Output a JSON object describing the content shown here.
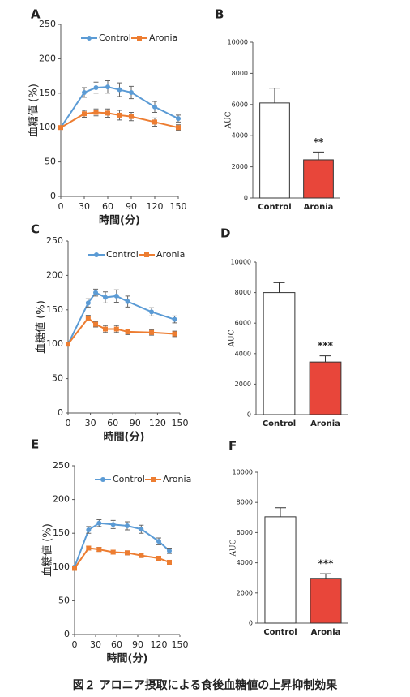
{
  "chart_data": [
    {
      "type": "line",
      "label": "A",
      "xlabel": "時間(分)",
      "ylabel": "血糖値 (%)",
      "x": [
        0,
        30,
        45,
        60,
        75,
        90,
        120,
        150
      ],
      "xlim": [
        0,
        150
      ],
      "xticks": [
        0,
        30,
        60,
        90,
        120,
        150
      ],
      "ylim": [
        0,
        250
      ],
      "yticks": [
        0,
        50,
        100,
        150,
        200,
        250
      ],
      "series": [
        {
          "name": "Control",
          "color": "#5b9bd5",
          "marker": "circle",
          "values": [
            100,
            151,
            158,
            159,
            155,
            151,
            130,
            113
          ],
          "errors": [
            0,
            7,
            8,
            9,
            10,
            9,
            8,
            5
          ]
        },
        {
          "name": "Aronia",
          "color": "#ed7d31",
          "marker": "square",
          "values": [
            100,
            120,
            122,
            121,
            118,
            116,
            108,
            100
          ],
          "errors": [
            0,
            5,
            5,
            6,
            7,
            6,
            6,
            4
          ]
        }
      ]
    },
    {
      "type": "bar",
      "label": "B",
      "ylabel": "AUC",
      "categories": [
        "Control",
        "Aronia"
      ],
      "values": [
        6100,
        2450
      ],
      "errors": [
        950,
        500
      ],
      "colors": [
        "#ffffff",
        "#e8463a"
      ],
      "value_annotations": [
        null,
        "**"
      ],
      "ylim": [
        0,
        10000
      ],
      "yticks": [
        0,
        2000,
        4000,
        6000,
        8000,
        10000
      ]
    },
    {
      "type": "line",
      "label": "C",
      "xlabel": "時間(分)",
      "ylabel": "血糖値 (%)",
      "x": [
        0,
        27,
        37,
        50,
        65,
        80,
        112,
        143
      ],
      "xlim": [
        0,
        150
      ],
      "xticks": [
        0,
        30,
        60,
        90,
        120,
        150
      ],
      "ylim": [
        0,
        250
      ],
      "yticks": [
        0,
        50,
        100,
        150,
        200,
        250
      ],
      "series": [
        {
          "name": "Control",
          "color": "#5b9bd5",
          "marker": "circle",
          "values": [
            100,
            160,
            175,
            168,
            170,
            162,
            147,
            136
          ],
          "errors": [
            0,
            6,
            5,
            8,
            9,
            8,
            6,
            5
          ]
        },
        {
          "name": "Aronia",
          "color": "#ed7d31",
          "marker": "square",
          "values": [
            100,
            138,
            129,
            122,
            122,
            118,
            117,
            115
          ],
          "errors": [
            0,
            4,
            4,
            5,
            5,
            4,
            4,
            4
          ]
        }
      ]
    },
    {
      "type": "bar",
      "label": "D",
      "ylabel": "AUC",
      "categories": [
        "Control",
        "Aronia"
      ],
      "values": [
        8000,
        3450
      ],
      "errors": [
        650,
        400
      ],
      "colors": [
        "#ffffff",
        "#e8463a"
      ],
      "value_annotations": [
        null,
        "***"
      ],
      "ylim": [
        0,
        10000
      ],
      "yticks": [
        0,
        2000,
        4000,
        6000,
        8000,
        10000
      ]
    },
    {
      "type": "line",
      "label": "E",
      "xlabel": "時間(分)",
      "ylabel": "血糖値 (%)",
      "x": [
        0,
        20,
        35,
        55,
        75,
        95,
        120,
        135
      ],
      "xlim": [
        0,
        150
      ],
      "xticks": [
        0,
        30,
        60,
        90,
        120,
        150
      ],
      "ylim": [
        0,
        250
      ],
      "yticks": [
        0,
        50,
        100,
        150,
        200,
        250
      ],
      "series": [
        {
          "name": "Control",
          "color": "#5b9bd5",
          "marker": "circle",
          "values": [
            100,
            155,
            165,
            163,
            161,
            156,
            138,
            124
          ],
          "errors": [
            0,
            5,
            5,
            6,
            6,
            6,
            5,
            4
          ]
        },
        {
          "name": "Aronia",
          "color": "#ed7d31",
          "marker": "square",
          "values": [
            98,
            128,
            126,
            122,
            121,
            117,
            113,
            107
          ],
          "errors": [
            0,
            3,
            3,
            3,
            3,
            3,
            3,
            3
          ]
        }
      ]
    },
    {
      "type": "bar",
      "label": "F",
      "ylabel": "AUC",
      "categories": [
        "Control",
        "Aronia"
      ],
      "values": [
        7050,
        2970
      ],
      "errors": [
        600,
        300
      ],
      "colors": [
        "#ffffff",
        "#e8463a"
      ],
      "value_annotations": [
        null,
        "***"
      ],
      "ylim": [
        0,
        10000
      ],
      "yticks": [
        0,
        2000,
        4000,
        6000,
        8000,
        10000
      ]
    }
  ],
  "caption": "図２ アロニア摂取による食後血糖値の上昇抑制効果"
}
